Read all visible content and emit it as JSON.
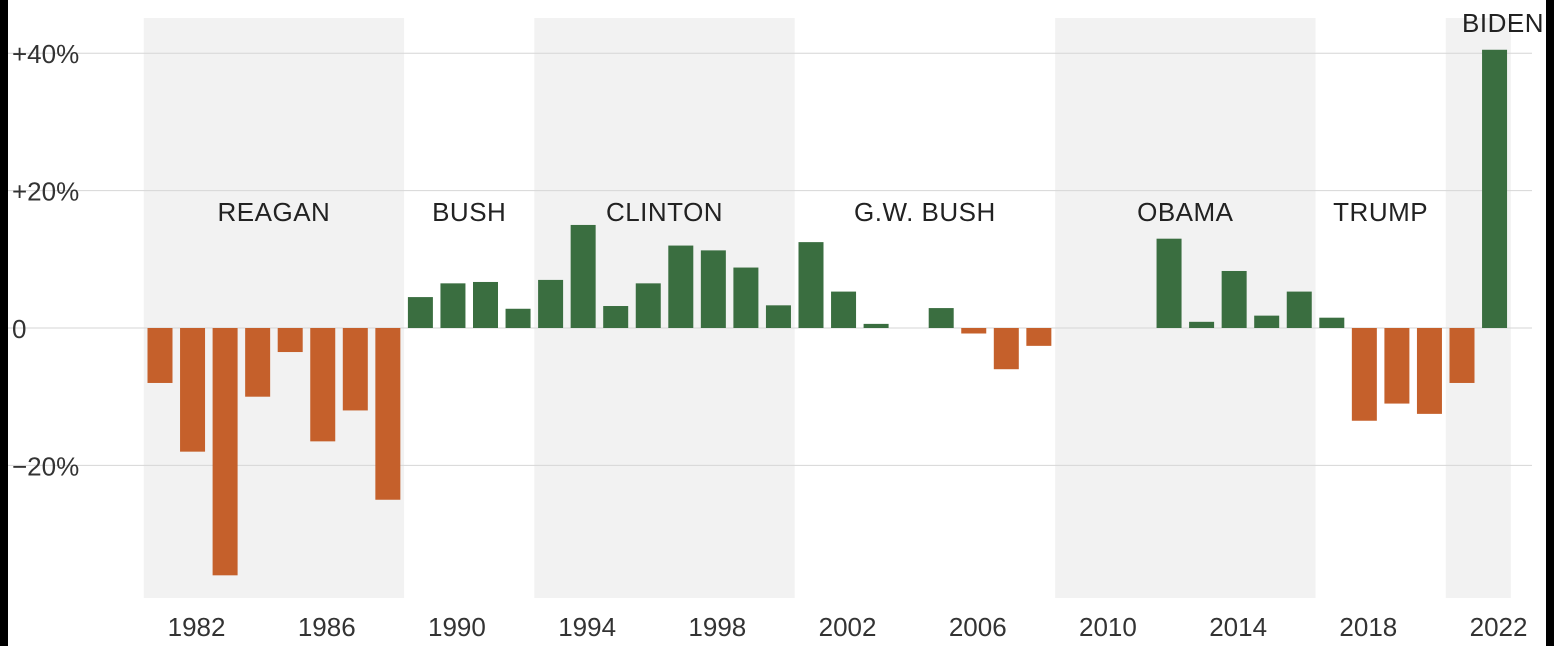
{
  "chart_data": {
    "type": "bar",
    "x": [
      1981,
      1982,
      1983,
      1984,
      1985,
      1986,
      1987,
      1988,
      1989,
      1990,
      1991,
      1992,
      1993,
      1994,
      1995,
      1996,
      1997,
      1998,
      1999,
      2000,
      2001,
      2002,
      2003,
      2004,
      2005,
      2006,
      2007,
      2008,
      2009,
      2010,
      2011,
      2012,
      2013,
      2014,
      2015,
      2016,
      2017,
      2018,
      2019,
      2020,
      2021,
      2022
    ],
    "values": [
      -8,
      -18,
      -36,
      -10,
      -3.5,
      -16.5,
      -12,
      -25,
      4.5,
      6.5,
      6.7,
      2.8,
      7,
      15,
      3.2,
      6.5,
      12,
      11.3,
      8.8,
      3.3,
      12.5,
      5.3,
      0.6,
      0,
      2.9,
      -0.8,
      -6,
      -2.6,
      0,
      0,
      0,
      13,
      0.9,
      8.3,
      1.8,
      5.3,
      1.5,
      -13.5,
      -11,
      -12.5,
      -8,
      40.5
    ],
    "yticks": [
      40,
      20,
      0,
      -20
    ],
    "ytick_labels": [
      "+40%",
      "+20%",
      "0",
      "−20%"
    ],
    "xticks": [
      1982,
      1986,
      1990,
      1994,
      1998,
      2002,
      2006,
      2010,
      2014,
      2018,
      2022
    ],
    "xtick_labels": [
      "1982",
      "1986",
      "1990",
      "1994",
      "1998",
      "2002",
      "2006",
      "2010",
      "2014",
      "2018",
      "2022"
    ],
    "ylim": [
      -40,
      45
    ],
    "grid": true,
    "colors": {
      "positive": "#3a6e40",
      "negative": "#c5602b",
      "band": "#f2f2f2",
      "grid": "#d6d6d6"
    },
    "bands": [
      {
        "from": 1981,
        "to": 1988
      },
      {
        "from": 1993,
        "to": 2000
      },
      {
        "from": 2009,
        "to": 2016
      },
      {
        "from": 2021,
        "to": 2022
      }
    ],
    "presidents": [
      {
        "label": "REAGAN",
        "at": 1984.5
      },
      {
        "label": "BUSH",
        "at": 1990.5
      },
      {
        "label": "CLINTON",
        "at": 1996.5
      },
      {
        "label": "G.W. BUSH",
        "at": 2004.5
      },
      {
        "label": "OBAMA",
        "at": 2012.5
      },
      {
        "label": "TRUMP",
        "at": 2018.5
      },
      {
        "label": "BIDEN",
        "at": 2022
      }
    ]
  }
}
